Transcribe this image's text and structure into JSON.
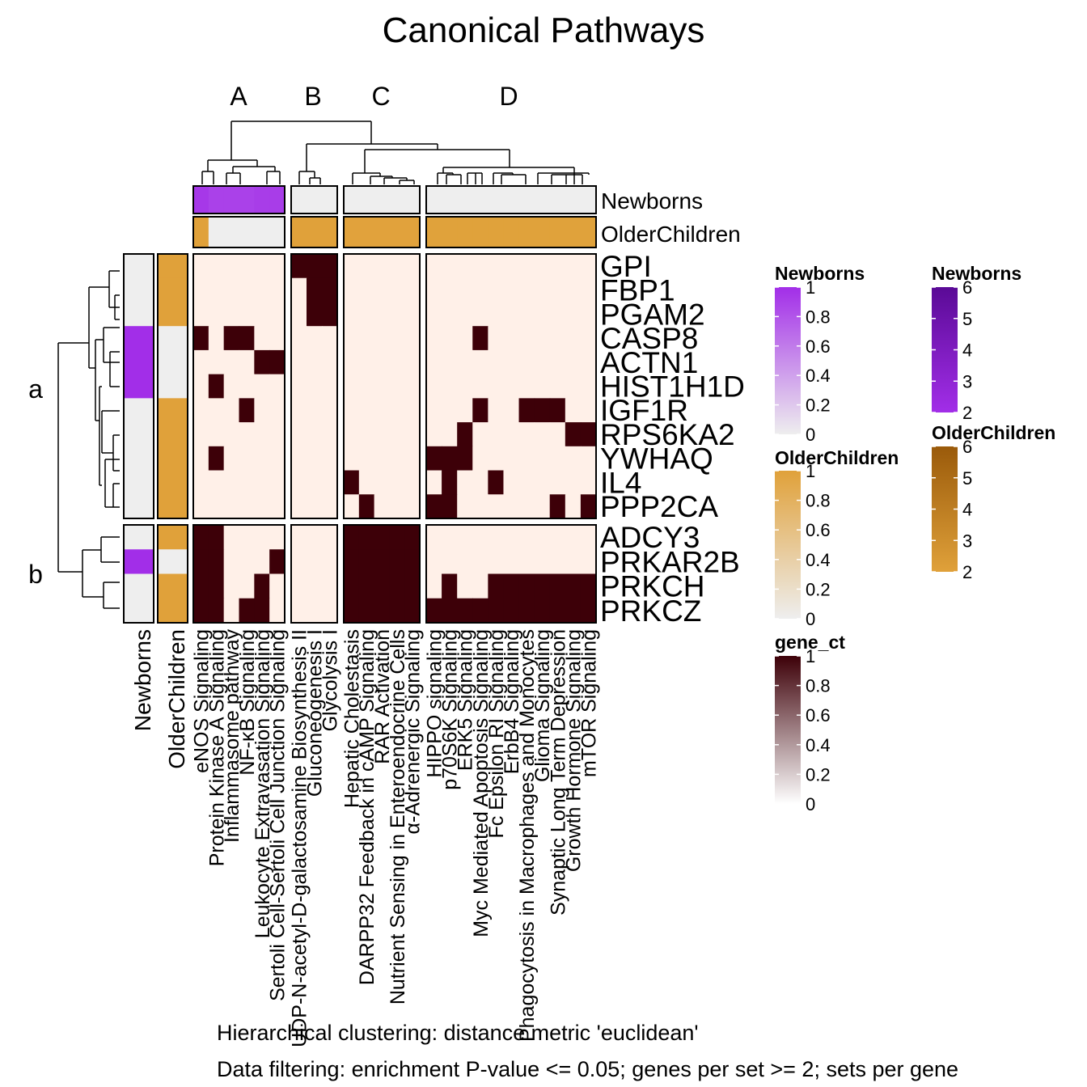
{
  "title": "Canonical Pathways",
  "footer": {
    "line1": "Hierarchical clustering: distance metric 'euclidean'",
    "line2": "Data filtering: enrichment P-value <= 0.05; genes per set >= 2; sets per gene"
  },
  "colors": {
    "heat_high": "#3d0008",
    "heat_low": "#fff0e8",
    "newborns_high": "#a22ee8",
    "older_high": "#e0a13a",
    "annot_low": "#eeeeee",
    "border": "#000000"
  },
  "chart_data": {
    "type": "heatmap",
    "title": "Canonical Pathways",
    "column_groups": [
      "A",
      "B",
      "C",
      "D"
    ],
    "row_groups": [
      "a",
      "b"
    ],
    "columns": [
      {
        "label": "eNOS Signaling",
        "group": "A",
        "newborns": 0.95,
        "older": 1
      },
      {
        "label": "Protein Kinase A Signaling",
        "group": "A",
        "newborns": 0.9,
        "older": 0
      },
      {
        "label": "Inflammasome pathway",
        "group": "A",
        "newborns": 0.9,
        "older": 0
      },
      {
        "label": "NF-κB Signaling",
        "group": "A",
        "newborns": 0.9,
        "older": 0
      },
      {
        "label": "Leukocyte Extravasation Signaling",
        "group": "A",
        "newborns": 0.92,
        "older": 0
      },
      {
        "label": "Sertoli Cell-Sertoli Cell Junction Signaling",
        "group": "A",
        "newborns": 0.92,
        "older": 0
      },
      {
        "label": "UDP-N-acetyl-D-galactosamine Biosynthesis II",
        "group": "B",
        "newborns": 0,
        "older": 1
      },
      {
        "label": "Gluconeogenesis I",
        "group": "B",
        "newborns": 0,
        "older": 1
      },
      {
        "label": "Glycolysis I",
        "group": "B",
        "newborns": 0,
        "older": 1
      },
      {
        "label": "Hepatic Cholestasis",
        "group": "C",
        "newborns": 0,
        "older": 0.9
      },
      {
        "label": "DARPP32 Feedback in cAMP Signaling",
        "group": "C",
        "newborns": 0,
        "older": 0.9
      },
      {
        "label": "RAR Activation",
        "group": "C",
        "newborns": 0,
        "older": 0.9
      },
      {
        "label": "Nutrient Sensing in Enteroendocrine Cells",
        "group": "C",
        "newborns": 0,
        "older": 0.9
      },
      {
        "label": "α-Adrenergic Signaling",
        "group": "C",
        "newborns": 0,
        "older": 0.9
      },
      {
        "label": "HIPPO signaling",
        "group": "D",
        "newborns": 0,
        "older": 0.95
      },
      {
        "label": "p70S6K Signaling",
        "group": "D",
        "newborns": 0,
        "older": 0.95
      },
      {
        "label": "ERK5 Signaling",
        "group": "D",
        "newborns": 0,
        "older": 0.95
      },
      {
        "label": "Myc Mediated Apoptosis Signaling",
        "group": "D",
        "newborns": 0,
        "older": 0.95
      },
      {
        "label": "Fc Epsilon RI Signaling",
        "group": "D",
        "newborns": 0,
        "older": 0.95
      },
      {
        "label": "ErbB4 Signaling",
        "group": "D",
        "newborns": 0,
        "older": 0.95
      },
      {
        "label": "Phagocytosis in Macrophages and Monocytes",
        "group": "D",
        "newborns": 0,
        "older": 0.95
      },
      {
        "label": "Glioma Signaling",
        "group": "D",
        "newborns": 0,
        "older": 0.95
      },
      {
        "label": "Synaptic Long Term Depression",
        "group": "D",
        "newborns": 0,
        "older": 0.95
      },
      {
        "label": "Growth Hormone Signaling",
        "group": "D",
        "newborns": 0,
        "older": 0.95
      },
      {
        "label": "mTOR Signaling",
        "group": "D",
        "newborns": 0,
        "older": 0.95
      }
    ],
    "rows": [
      {
        "gene": "GPI",
        "group": "a",
        "newborns": 0,
        "older": 1
      },
      {
        "gene": "FBP1",
        "group": "a",
        "newborns": 0,
        "older": 1
      },
      {
        "gene": "PGAM2",
        "group": "a",
        "newborns": 0,
        "older": 1
      },
      {
        "gene": "CASP8",
        "group": "a",
        "newborns": 1,
        "older": 0
      },
      {
        "gene": "ACTN1",
        "group": "a",
        "newborns": 1,
        "older": 0
      },
      {
        "gene": "HIST1H1D",
        "group": "a",
        "newborns": 1,
        "older": 0
      },
      {
        "gene": "IGF1R",
        "group": "a",
        "newborns": 0,
        "older": 1
      },
      {
        "gene": "RPS6KA2",
        "group": "a",
        "newborns": 0,
        "older": 1
      },
      {
        "gene": "YWHAQ",
        "group": "a",
        "newborns": 0,
        "older": 1
      },
      {
        "gene": "IL4",
        "group": "a",
        "newborns": 0,
        "older": 1
      },
      {
        "gene": "PPP2CA",
        "group": "a",
        "newborns": 0,
        "older": 1
      },
      {
        "gene": "ADCY3",
        "group": "b",
        "newborns": 0,
        "older": 1
      },
      {
        "gene": "PRKAR2B",
        "group": "b",
        "newborns": 1,
        "older": 0
      },
      {
        "gene": "PRKCH",
        "group": "b",
        "newborns": 0,
        "older": 1
      },
      {
        "gene": "PRKCZ",
        "group": "b",
        "newborns": 0,
        "older": 1
      }
    ],
    "gene_ct": [
      [
        0,
        0,
        0,
        0,
        0,
        0,
        1,
        1,
        1,
        0,
        0,
        0,
        0,
        0,
        0,
        0,
        0,
        0,
        0,
        0,
        0,
        0,
        0,
        0,
        0
      ],
      [
        0,
        0,
        0,
        0,
        0,
        0,
        0,
        1,
        1,
        0,
        0,
        0,
        0,
        0,
        0,
        0,
        0,
        0,
        0,
        0,
        0,
        0,
        0,
        0,
        0
      ],
      [
        0,
        0,
        0,
        0,
        0,
        0,
        0,
        1,
        1,
        0,
        0,
        0,
        0,
        0,
        0,
        0,
        0,
        0,
        0,
        0,
        0,
        0,
        0,
        0,
        0
      ],
      [
        1,
        0,
        1,
        1,
        0,
        0,
        0,
        0,
        0,
        0,
        0,
        0,
        0,
        0,
        0,
        0,
        0,
        1,
        0,
        0,
        0,
        0,
        0,
        0,
        0
      ],
      [
        0,
        0,
        0,
        0,
        1,
        1,
        0,
        0,
        0,
        0,
        0,
        0,
        0,
        0,
        0,
        0,
        0,
        0,
        0,
        0,
        0,
        0,
        0,
        0,
        0
      ],
      [
        0,
        1,
        0,
        0,
        0,
        0,
        0,
        0,
        0,
        0,
        0,
        0,
        0,
        0,
        0,
        0,
        0,
        0,
        0,
        0,
        0,
        0,
        0,
        0,
        0
      ],
      [
        0,
        0,
        0,
        1,
        0,
        0,
        0,
        0,
        0,
        0,
        0,
        0,
        0,
        0,
        0,
        0,
        0,
        1,
        0,
        0,
        1,
        1,
        1,
        0,
        0
      ],
      [
        0,
        0,
        0,
        0,
        0,
        0,
        0,
        0,
        0,
        0,
        0,
        0,
        0,
        0,
        0,
        0,
        1,
        0,
        0,
        0,
        0,
        0,
        0,
        1,
        1
      ],
      [
        0,
        1,
        0,
        0,
        0,
        0,
        0,
        0,
        0,
        0,
        0,
        0,
        0,
        0,
        1,
        1,
        1,
        0,
        0,
        0,
        0,
        0,
        0,
        0,
        0
      ],
      [
        0,
        0,
        0,
        0,
        0,
        0,
        0,
        0,
        0,
        1,
        0,
        0,
        0,
        0,
        0,
        1,
        0,
        0,
        1,
        0,
        0,
        0,
        0,
        0,
        0
      ],
      [
        0,
        0,
        0,
        0,
        0,
        0,
        0,
        0,
        0,
        0,
        1,
        0,
        0,
        0,
        1,
        1,
        0,
        0,
        0,
        0,
        0,
        0,
        1,
        0,
        1
      ],
      [
        1,
        1,
        0,
        0,
        0,
        0,
        0,
        0,
        0,
        1,
        1,
        1,
        1,
        1,
        0,
        0,
        0,
        0,
        0,
        0,
        0,
        0,
        0,
        0,
        0
      ],
      [
        1,
        1,
        0,
        0,
        0,
        1,
        0,
        0,
        0,
        1,
        1,
        1,
        1,
        1,
        0,
        0,
        0,
        0,
        0,
        0,
        0,
        0,
        0,
        0,
        0
      ],
      [
        1,
        1,
        0,
        0,
        1,
        0,
        0,
        0,
        0,
        1,
        1,
        1,
        1,
        1,
        0,
        1,
        0,
        0,
        1,
        1,
        1,
        1,
        1,
        1,
        1
      ],
      [
        1,
        1,
        0,
        1,
        1,
        0,
        0,
        0,
        0,
        1,
        1,
        1,
        1,
        1,
        1,
        1,
        1,
        1,
        1,
        1,
        1,
        1,
        1,
        1,
        1
      ]
    ],
    "annotation_tracks": [
      "Newborns",
      "OlderChildren"
    ],
    "legends": [
      {
        "title": "Newborns",
        "ticks": [
          "1",
          "0.8",
          "0.6",
          "0.4",
          "0.2",
          "0"
        ],
        "range": [
          0,
          1
        ],
        "low": "#eeeeee",
        "high": "#a22ee8"
      },
      {
        "title": "OlderChildren",
        "ticks": [
          "1",
          "0.8",
          "0.6",
          "0.4",
          "0.2",
          "0"
        ],
        "range": [
          0,
          1
        ],
        "low": "#eeeeee",
        "high": "#e0a13a"
      },
      {
        "title": "gene_ct",
        "ticks": [
          "1",
          "0.8",
          "0.6",
          "0.4",
          "0.2",
          "0"
        ],
        "range": [
          0,
          1
        ],
        "low": "#ffffff",
        "high": "#3d0008"
      },
      {
        "title": "Newborns",
        "ticks": [
          "6",
          "5",
          "4",
          "3",
          "2"
        ],
        "range": [
          2,
          6
        ],
        "low": "#a22ee8",
        "high": "#5a0a96"
      },
      {
        "title": "OlderChildren",
        "ticks": [
          "6",
          "5",
          "4",
          "3",
          "2"
        ],
        "range": [
          2,
          6
        ],
        "low": "#e0a13a",
        "high": "#9a5a0a"
      }
    ]
  }
}
